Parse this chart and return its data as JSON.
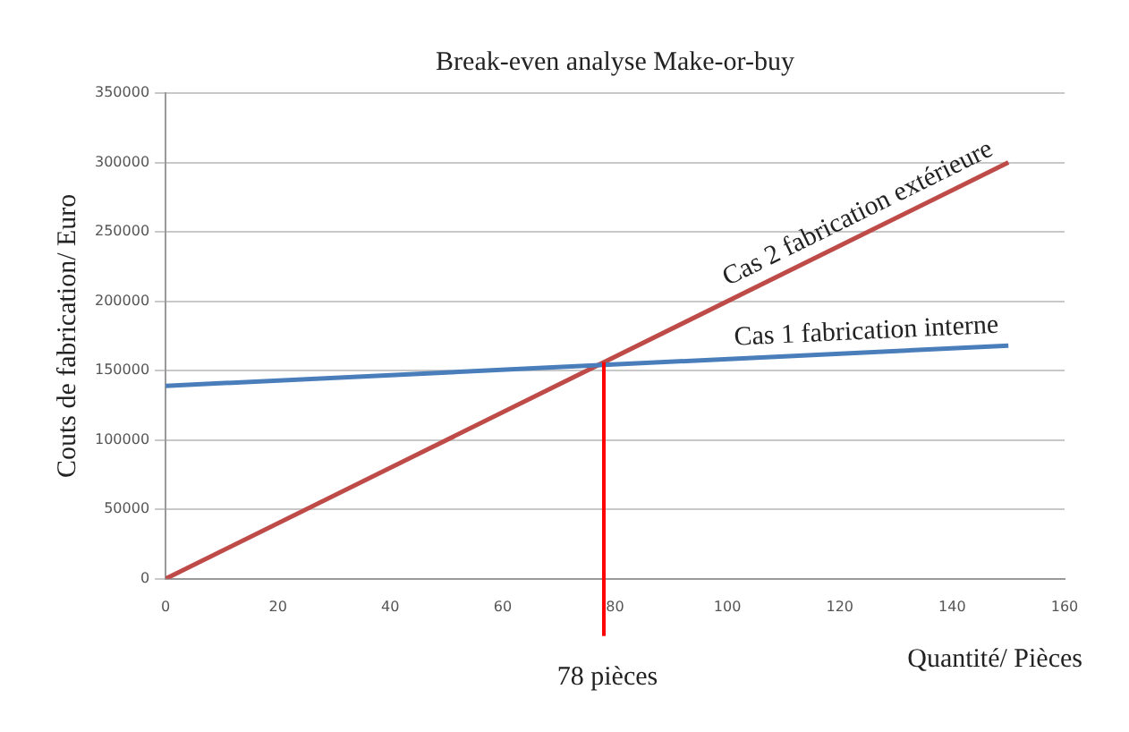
{
  "chart_data": {
    "type": "line",
    "title": "Break-even analyse Make-or-buy",
    "xlabel": "Quantité/ Pièces",
    "ylabel": "Couts de fabrication/ Euro",
    "xlim": [
      0,
      160
    ],
    "xticks": [
      0,
      20,
      40,
      60,
      80,
      100,
      120,
      140,
      160
    ],
    "ylim": [
      0,
      350000
    ],
    "yticks": [
      0,
      50000,
      100000,
      150000,
      200000,
      250000,
      300000,
      350000
    ],
    "x": [
      0,
      150
    ],
    "grid": "y",
    "legend": false,
    "marker": "none",
    "series": [
      {
        "name": "Cas 1 fabrication interne",
        "color": "#4a7ebb",
        "values": [
          139000,
          168000
        ]
      },
      {
        "name": "Cas 2 fabrication extérieure",
        "color": "#be4b48",
        "values": [
          0,
          300000
        ]
      }
    ],
    "ref_lines": [
      {
        "axis": "x",
        "value": 78,
        "label": "78 pièces",
        "color": "#ff0000"
      }
    ]
  }
}
